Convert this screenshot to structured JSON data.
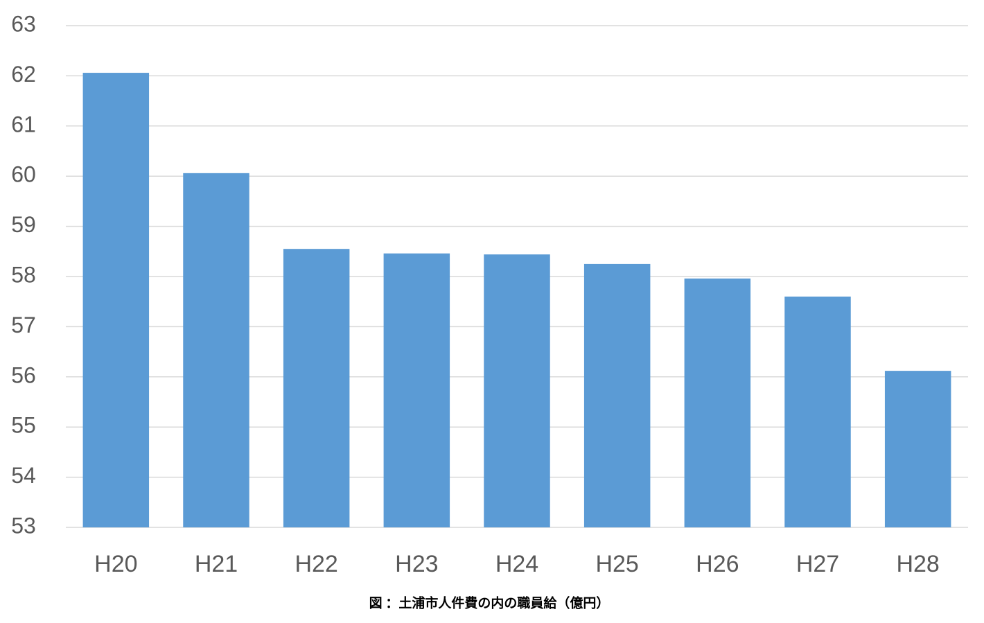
{
  "chart_data": {
    "type": "bar",
    "title": "図 ：土浦市人件費の内の職員給（億円）",
    "categories": [
      "H20",
      "H21",
      "H22",
      "H23",
      "H24",
      "H25",
      "H26",
      "H27",
      "H28"
    ],
    "values": [
      62.06,
      60.06,
      58.55,
      58.46,
      58.44,
      58.25,
      57.96,
      57.6,
      56.12
    ],
    "color": "#5b9bd5",
    "ylim": [
      53,
      63
    ],
    "yticks": [
      53,
      54,
      55,
      56,
      57,
      58,
      59,
      60,
      61,
      62,
      63
    ],
    "grid": true
  }
}
